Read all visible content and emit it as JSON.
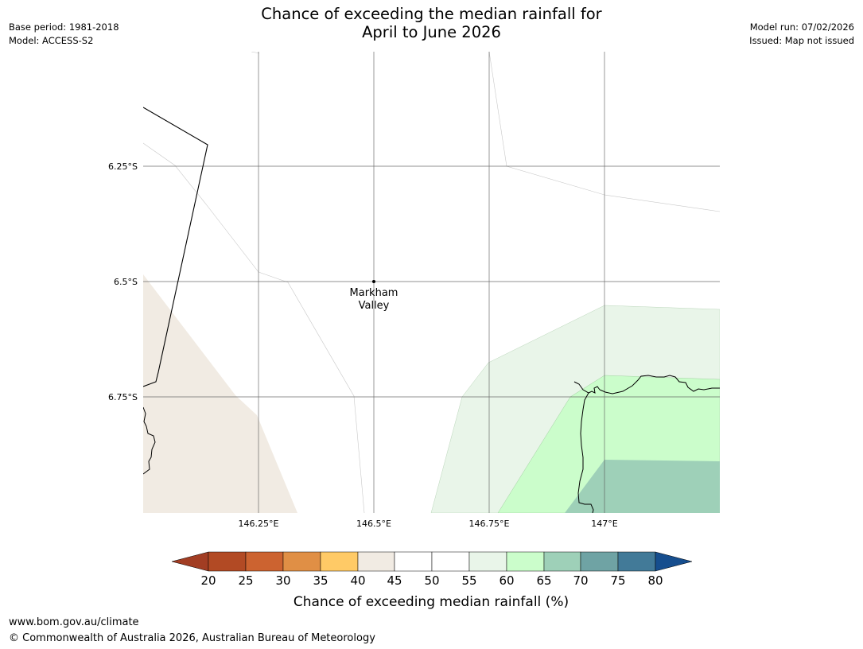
{
  "header": {
    "title_line1": "Chance of exceeding the median rainfall for",
    "title_line2": "April to June 2026",
    "base_period": "Base period: 1981-2018",
    "model": "Model: ACCESS-S2",
    "model_run": "Model run: 07/02/2026",
    "issued": "Issued: Map not issued"
  },
  "map": {
    "lat_labels": [
      "6.25°S",
      "6.5°S",
      "6.75°S"
    ],
    "lon_labels": [
      "146.25°E",
      "146.5°E",
      "146.75°E",
      "147°E"
    ],
    "place": {
      "name_line1": "Markham",
      "name_line2": "Valley",
      "lon": 146.5,
      "lat": -6.5
    }
  },
  "legend": {
    "title": "Chance of exceeding median rainfall (%)",
    "ticks": [
      "20",
      "25",
      "30",
      "35",
      "40",
      "45",
      "50",
      "55",
      "60",
      "65",
      "70",
      "75",
      "80"
    ],
    "colors": [
      "#a23d23",
      "#b24a24",
      "#cc6330",
      "#e08f45",
      "#ffca66",
      "#f1ebe3",
      "#ffffff",
      "#ffffff",
      "#e9f5e9",
      "#cbfdcb",
      "#9ed0b8",
      "#6fa3a4",
      "#427a98",
      "#164e8e"
    ]
  },
  "footer": {
    "url": "www.bom.gov.au/climate",
    "copyright": "© Commonwealth of Australia 2026, Australian Bureau of Meteorology"
  }
}
